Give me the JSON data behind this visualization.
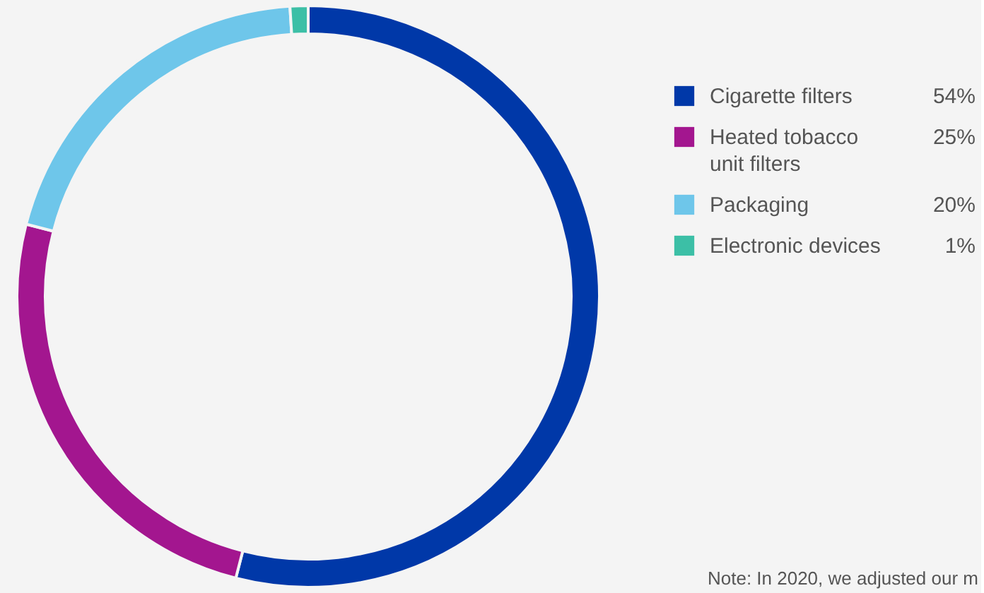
{
  "chart_data": {
    "type": "donut",
    "categories": [
      "Cigarette filters",
      "Heated tobacco unit filters",
      "Packaging",
      "Electronic devices"
    ],
    "values": [
      54,
      25,
      20,
      1
    ],
    "colors": [
      "#0038a8",
      "#a3168f",
      "#6ec6ea",
      "#3cbfa6"
    ],
    "value_labels": [
      "54%",
      "25%",
      "20%",
      "1%"
    ],
    "legend": "right",
    "annotations": [
      "Note: In 2020, we adjusted our m"
    ]
  }
}
